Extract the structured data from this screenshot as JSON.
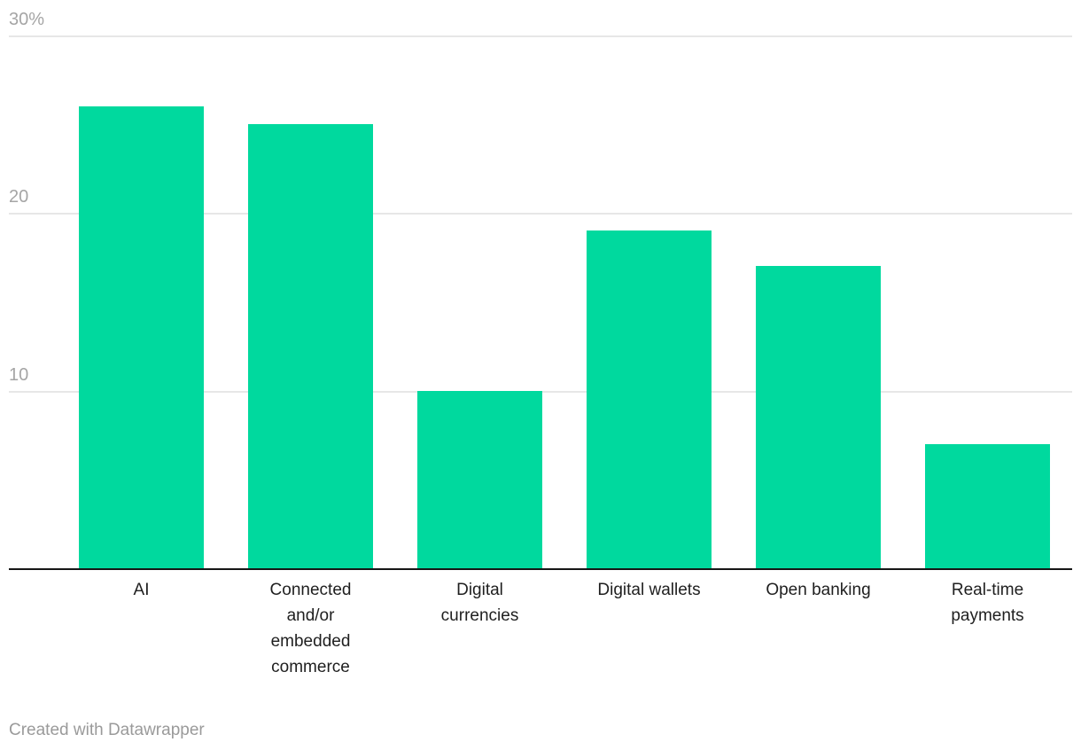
{
  "chart_data": {
    "type": "bar",
    "title": "",
    "categories": [
      "AI",
      "Connected and/or embedded commerce",
      "Digital currencies",
      "Digital wallets",
      "Open banking",
      "Real-time payments"
    ],
    "category_display_labels": [
      "AI",
      "Connected\nand/or\nembedded\ncommerce",
      "Digital\ncurrencies",
      "Digital wallets",
      "Open banking",
      "Real-time\npayments"
    ],
    "values": [
      26,
      25,
      10,
      19,
      17,
      7
    ],
    "unit": "%",
    "xlabel": "",
    "ylabel": "",
    "ylim": [
      0,
      30
    ],
    "yticks": [
      {
        "value": 30,
        "label": "30%"
      },
      {
        "value": 20,
        "label": "20"
      },
      {
        "value": 10,
        "label": "10"
      }
    ],
    "grid": true,
    "legend": "none",
    "bar_color": "#00D99E"
  },
  "footer": {
    "attribution": "Created with Datawrapper"
  },
  "colors": {
    "bar": "#00D99E",
    "gridline": "#e7e7e7",
    "axis_line": "#161616",
    "tick_label": "#a5a5a5",
    "category_label": "#1f1f1f",
    "footer_text": "#9a9a9a",
    "background": "#ffffff"
  }
}
